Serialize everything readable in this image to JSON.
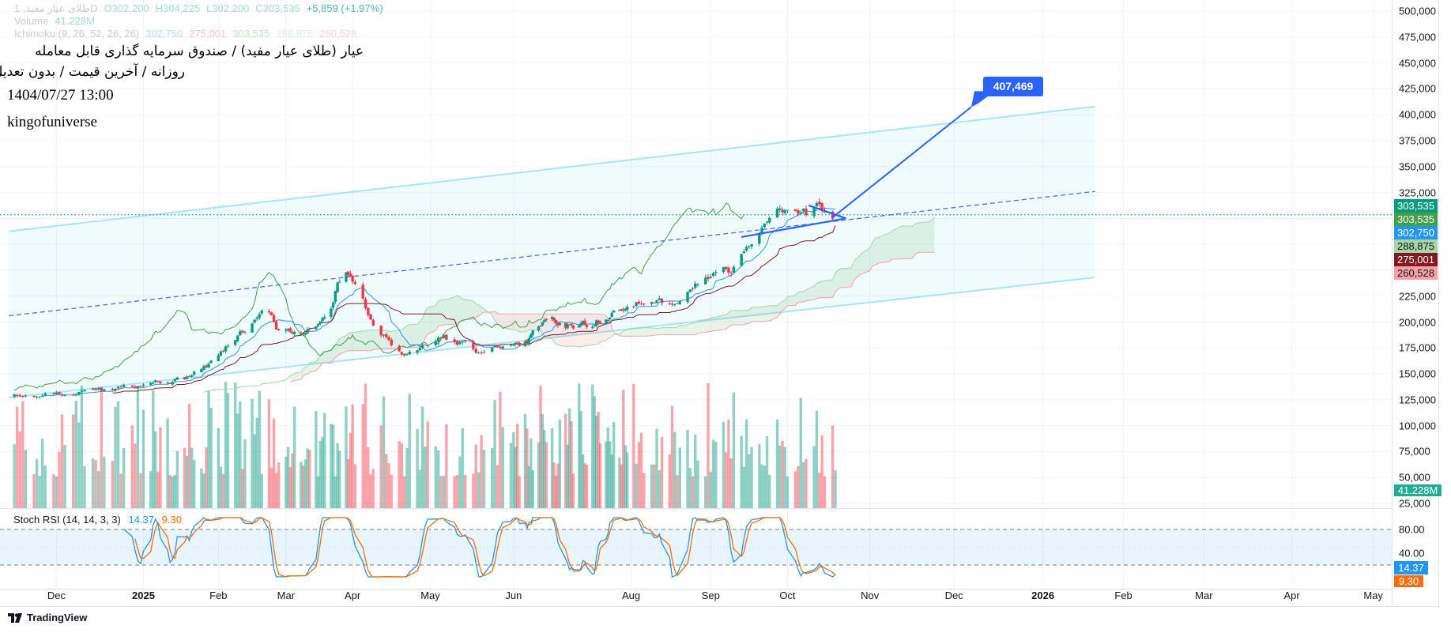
{
  "legend": {
    "symbol_line": [
      "طلای عیار مفید, 1D",
      "O302,200",
      "H304,225",
      "L302,200",
      "C303,535",
      "+5,859 (+1.97%)"
    ],
    "volume_line": [
      "Volume",
      "41.228M"
    ],
    "ichimoku_line": [
      "Ichimoku (9, 26, 52, 26, 26)",
      "302,750",
      "275,001",
      "303,535",
      "288,875",
      "260,528"
    ]
  },
  "overlay": {
    "title_fa": "عیار (طلای عیار مفید) / صندوق سرمایه گذاری قابل معامله",
    "subtitle_fa": "روزانه / آخرین قیمت / بدون تعدیل",
    "datetime": "1404/07/27 13:00",
    "author": "kingofuniverse"
  },
  "colors": {
    "up": "#089981",
    "down": "#f23645",
    "tenkan": "#2196f3",
    "kijun": "#801922",
    "lagging": "#43a047",
    "senkou_a": "#a5d6a7",
    "senkou_b": "#f7a1a7",
    "channel": "#a8e6ef",
    "drawing": "#2962ff",
    "stoch_k": "#2196f3",
    "stoch_d": "#ff6d00"
  },
  "price_axis": {
    "ticks": [
      "500,000",
      "475,000",
      "450,000",
      "425,000",
      "400,000",
      "375,000",
      "350,000",
      "325,000",
      "225,000",
      "200,000",
      "175,000",
      "150,000",
      "125,000",
      "100,000",
      "75,000",
      "50,000",
      "25,000"
    ],
    "badges": {
      "last": "303,535",
      "senkou_a_lagging": "303,535",
      "tenkan": "302,750",
      "senkou_a": "288,875",
      "kijun": "275,001",
      "senkou_b": "260,528",
      "volume": "41.228M"
    }
  },
  "stoch_panel": {
    "title": "Stoch RSI (14, 14, 3, 3)",
    "k_value": "14.37",
    "d_value": "9.30",
    "ticks": [
      "80.00",
      "40.00"
    ],
    "upper_band": 80,
    "lower_band": 20
  },
  "time_axis": {
    "labels": [
      "Dec",
      "2025",
      "Feb",
      "Mar",
      "Apr",
      "May",
      "Jun",
      "Aug",
      "Sep",
      "Oct",
      "Nov",
      "Dec",
      "2026",
      "Feb",
      "Mar",
      "Apr",
      "May"
    ]
  },
  "chart_data": {
    "type": "candlestick",
    "interval": "1D",
    "key_closes": [
      [
        "2024-11-14",
        128000
      ],
      [
        "2024-12-14",
        133000
      ],
      [
        "2025-01-01",
        140000
      ],
      [
        "2025-01-18",
        145000
      ],
      [
        "2025-02-01",
        165000
      ],
      [
        "2025-02-10",
        190000
      ],
      [
        "2025-02-21",
        215000
      ],
      [
        "2025-02-25",
        195000
      ],
      [
        "2025-03-10",
        190000
      ],
      [
        "2025-03-21",
        205000
      ],
      [
        "2025-03-25",
        235000
      ],
      [
        "2025-03-29",
        245000
      ],
      [
        "2025-04-04",
        225000
      ],
      [
        "2025-04-07",
        205000
      ],
      [
        "2025-04-14",
        185000
      ],
      [
        "2025-04-21",
        165000
      ],
      [
        "2025-04-28",
        175000
      ],
      [
        "2025-05-06",
        185000
      ],
      [
        "2025-05-13",
        180000
      ],
      [
        "2025-05-18",
        172000
      ],
      [
        "2025-05-26",
        178000
      ],
      [
        "2025-06-08",
        180000
      ],
      [
        "2025-06-20",
        210000
      ],
      [
        "2025-06-27",
        195000
      ],
      [
        "2025-07-11",
        198000
      ],
      [
        "2025-08-04",
        220000
      ],
      [
        "2025-08-15",
        218000
      ],
      [
        "2025-08-24",
        230000
      ],
      [
        "2025-08-29",
        240000
      ],
      [
        "2025-09-05",
        255000
      ],
      [
        "2025-09-09",
        250000
      ],
      [
        "2025-09-16",
        275000
      ],
      [
        "2025-09-23",
        290000
      ],
      [
        "2025-09-30",
        310000
      ],
      [
        "2025-10-08",
        305000
      ],
      [
        "2025-10-11",
        315000
      ],
      [
        "2025-10-19",
        303535
      ]
    ],
    "last_bar": {
      "open": 302200,
      "high": 304225,
      "low": 302200,
      "close": 303535,
      "change": 5859,
      "change_pct": 1.97,
      "volume": "41.228M"
    },
    "ichimoku": {
      "params": [
        9,
        26,
        52,
        26,
        26
      ],
      "tenkan": 302750,
      "kijun": 275001,
      "lagging": 303535,
      "senkou_a": 288875,
      "senkou_b": 260528
    },
    "stoch_rsi": {
      "params": [
        14,
        14,
        3,
        3
      ],
      "k": 14.37,
      "d": 9.3
    },
    "drawings": {
      "channel_upper": [
        [
          "2024-11-14",
          287500
        ],
        [
          "2026-01-21",
          408000
        ]
      ],
      "channel_lower": [
        [
          "2024-11-14",
          127000
        ],
        [
          "2026-01-21",
          243000
        ]
      ],
      "channel_mid": [
        [
          "2024-11-14",
          206000
        ],
        [
          "2026-01-21",
          326000
        ]
      ],
      "triangle_upper": [
        [
          "2025-10-09",
          312500
        ],
        [
          "2025-10-23",
          300000
        ]
      ],
      "triangle_lower": [
        [
          "2025-09-13",
          282000
        ],
        [
          "2025-10-23",
          300000
        ]
      ],
      "target_arrow": [
        [
          "2025-10-18",
          301000
        ],
        [
          "2025-12-07",
          407469
        ]
      ],
      "target_value": "407,469",
      "last_price_line": 303535
    },
    "price_range": [
      25000,
      500000
    ],
    "grid": true
  }
}
